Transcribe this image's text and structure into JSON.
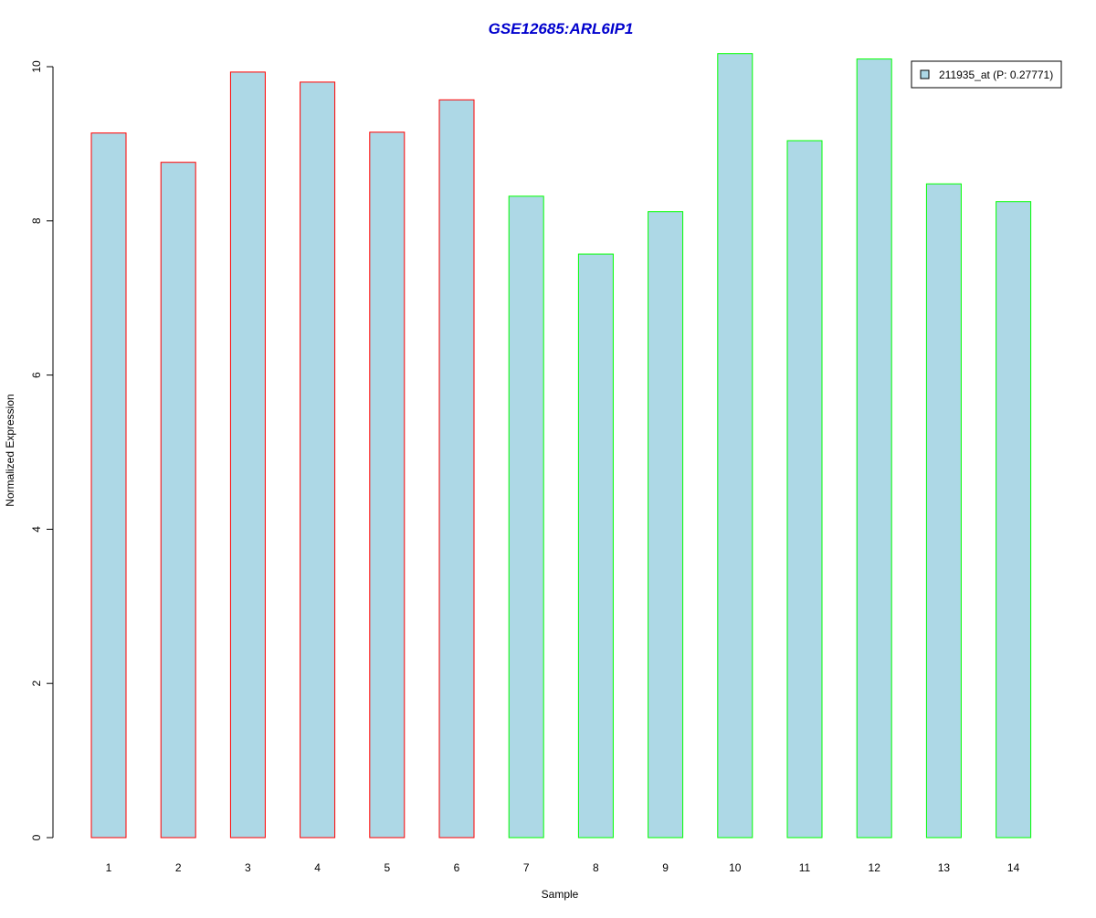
{
  "chart_data": {
    "type": "bar",
    "title": "GSE12685:ARL6IP1",
    "xlabel": "Sample",
    "ylabel": "Normalized Expression",
    "ylim": [
      0,
      10.2
    ],
    "yticks": [
      0,
      2,
      4,
      6,
      8,
      10
    ],
    "grid": false,
    "legend_position": "top-right",
    "categories": [
      "1",
      "2",
      "3",
      "4",
      "5",
      "6",
      "7",
      "8",
      "9",
      "10",
      "11",
      "12",
      "13",
      "14"
    ],
    "series": [
      {
        "name": "211935_at (P: 0.27771)",
        "values": [
          9.14,
          8.76,
          9.93,
          9.8,
          9.15,
          9.57,
          8.32,
          7.57,
          8.12,
          10.17,
          9.04,
          10.1,
          8.48,
          8.25
        ]
      }
    ],
    "groups": [
      {
        "samples": [
          1,
          2,
          3,
          4,
          5,
          6
        ],
        "border_color": "#ff0000"
      },
      {
        "samples": [
          7,
          8,
          9,
          10,
          11,
          12,
          13,
          14
        ],
        "border_color": "#00ff00"
      }
    ],
    "colors": {
      "bar_fill": "#add8e6",
      "title": "#0000cd",
      "axis": "#000000"
    }
  }
}
